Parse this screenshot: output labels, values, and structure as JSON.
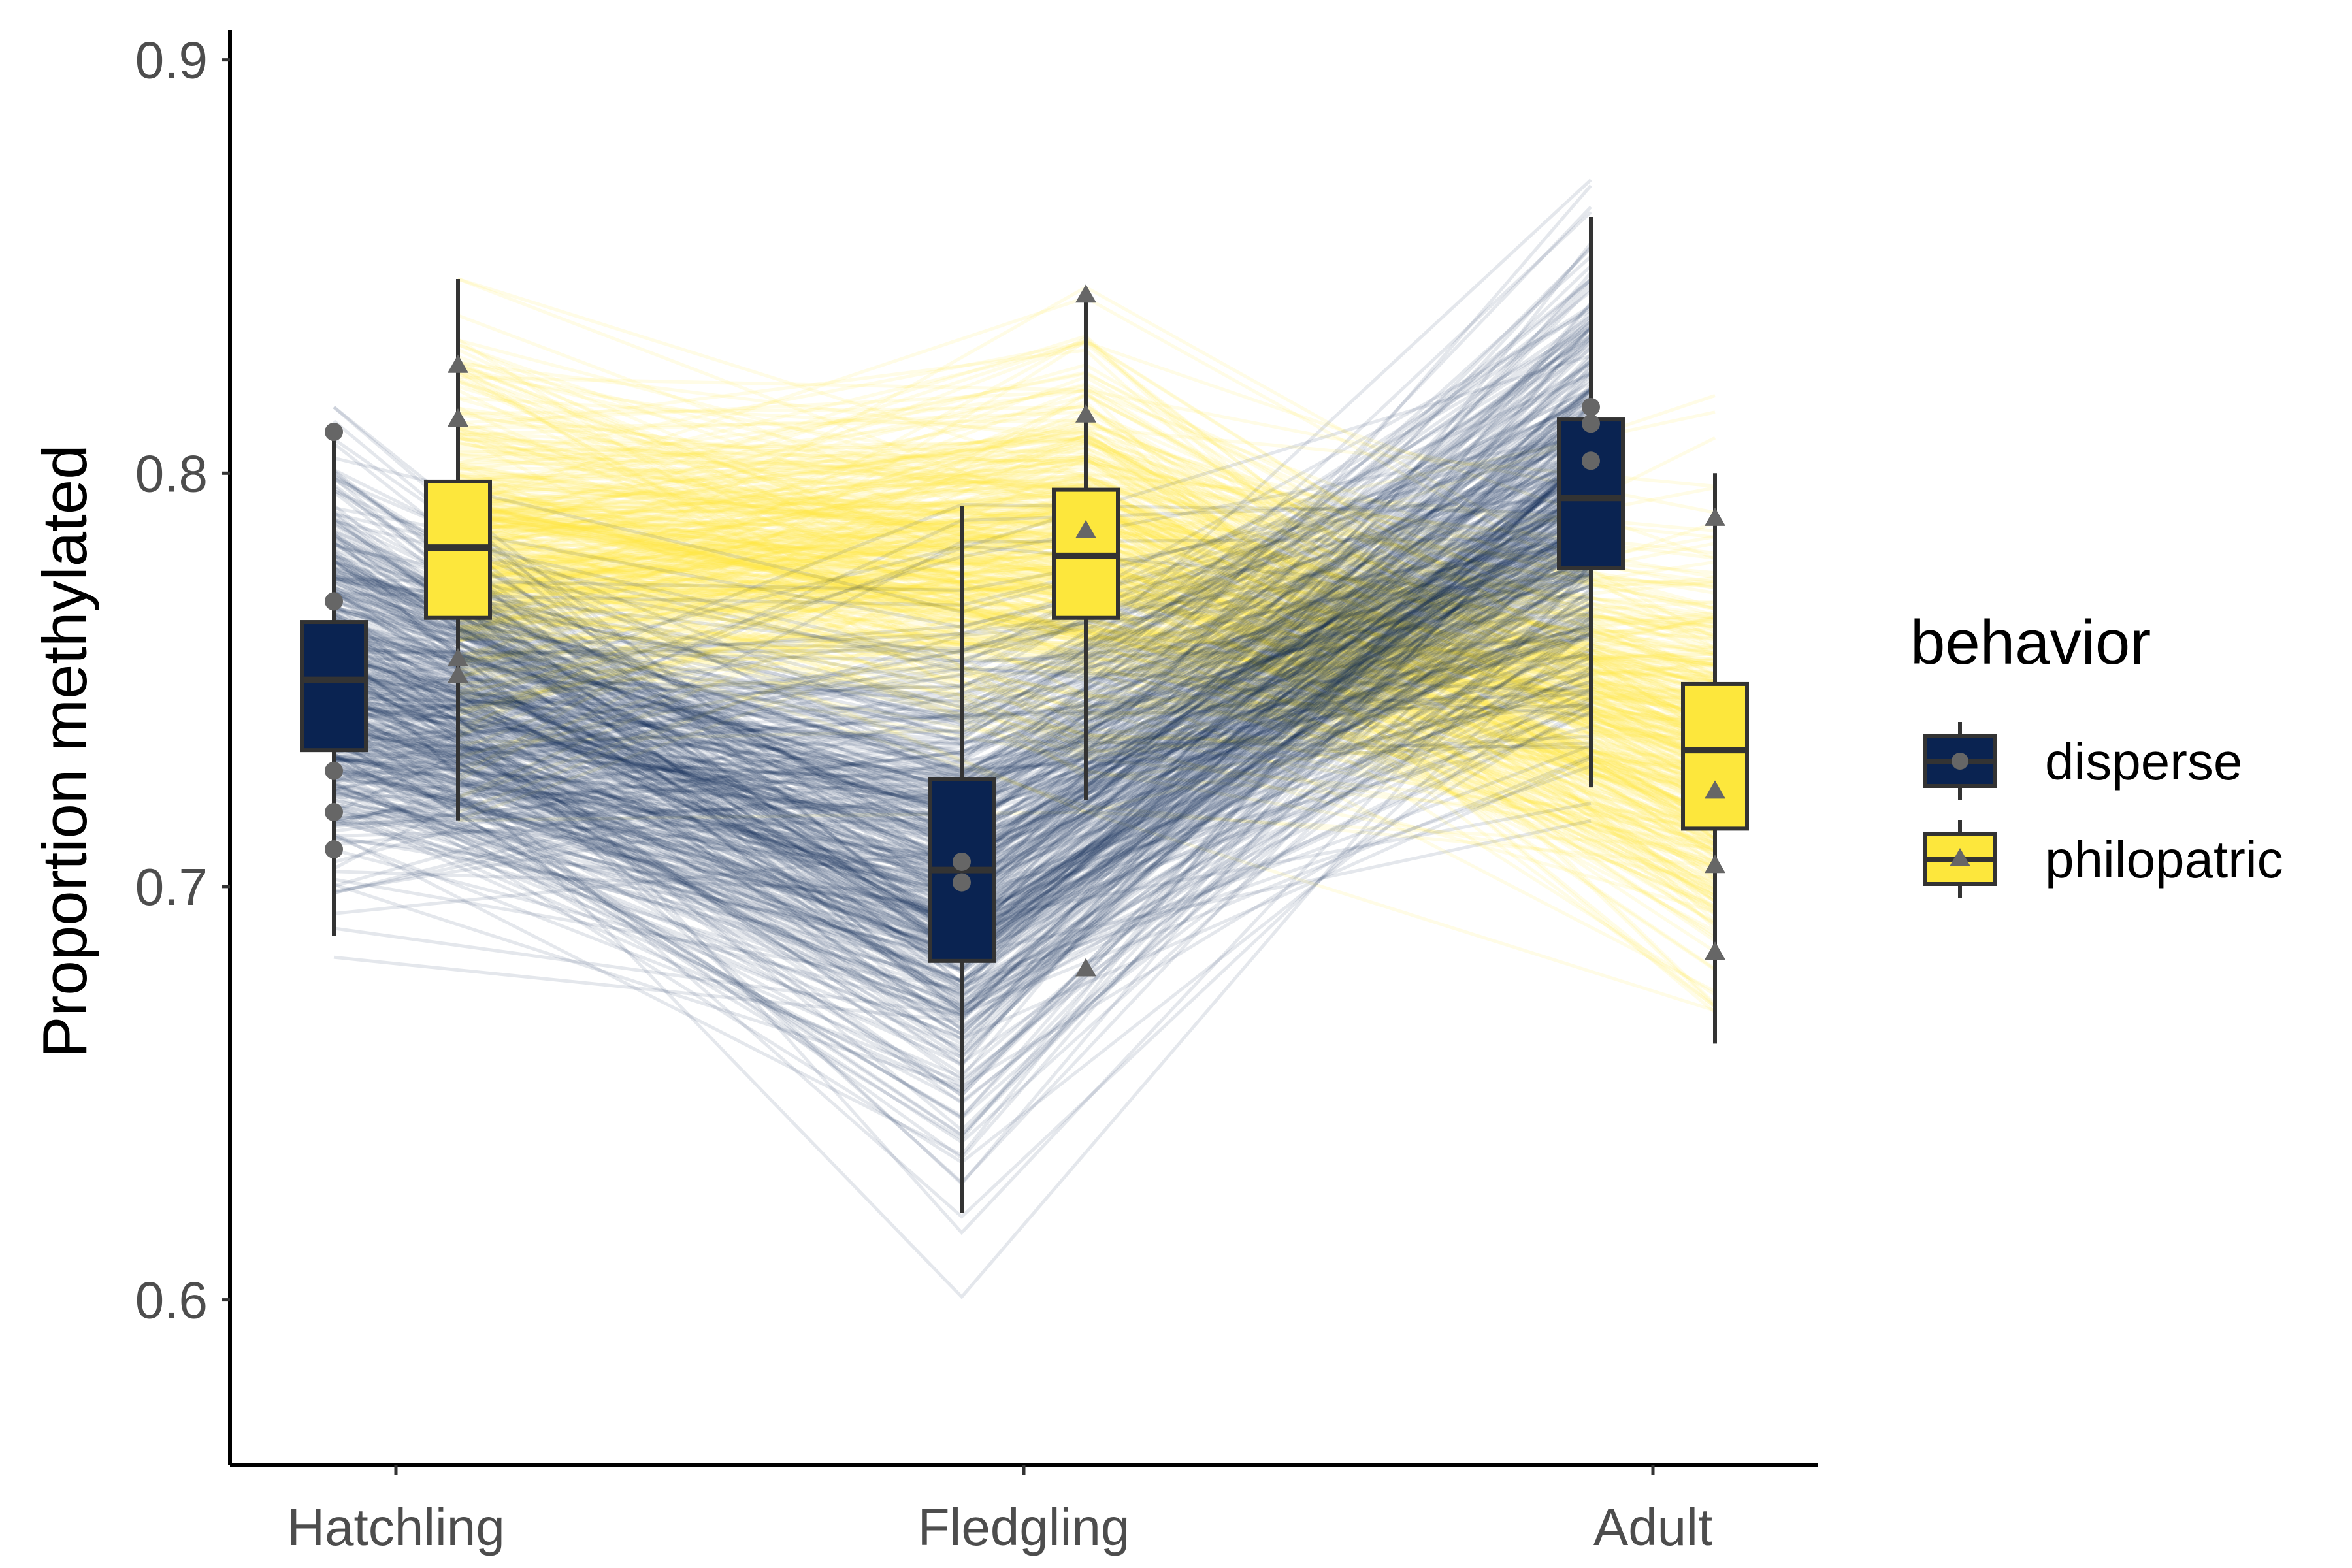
{
  "chart_data": {
    "type": "box",
    "title": "",
    "xlabel": "",
    "ylabel": "Proportion methylated",
    "ylim": [
      0.562,
      0.905
    ],
    "y_ticks": [
      0.6,
      0.7,
      0.8,
      0.9
    ],
    "y_tick_labels": [
      "0.6",
      "0.7",
      "0.8",
      "0.9"
    ],
    "categories": [
      "Hatchling",
      "Fledgling",
      "Adult"
    ],
    "grid": false,
    "legend": {
      "title": "behavior",
      "position": "right",
      "entries": [
        {
          "label": "disperse",
          "color": "#0a2351",
          "shape": "circle"
        },
        {
          "label": "philopatric",
          "color": "#fde73c",
          "shape": "triangle"
        }
      ]
    },
    "series": [
      {
        "name": "disperse",
        "color": "#0a2351",
        "boxes": [
          {
            "category": "Hatchling",
            "whisker_low": 0.688,
            "q1": 0.733,
            "median": 0.75,
            "q3": 0.764,
            "whisker_high": 0.81,
            "points": [
              0.81,
              0.769,
              0.728,
              0.718,
              0.709
            ]
          },
          {
            "category": "Fledgling",
            "whisker_low": 0.621,
            "q1": 0.682,
            "median": 0.704,
            "q3": 0.726,
            "whisker_high": 0.792,
            "points": [
              0.706,
              0.701
            ]
          },
          {
            "category": "Adult",
            "whisker_low": 0.724,
            "q1": 0.777,
            "median": 0.794,
            "q3": 0.813,
            "whisker_high": 0.862,
            "points": [
              0.816,
              0.812,
              0.803
            ]
          }
        ],
        "trajectory_band": {
          "Hatchling": [
            0.662,
            0.816
          ],
          "Fledgling": [
            0.578,
            0.82
          ],
          "Adult": [
            0.705,
            0.887
          ]
        }
      },
      {
        "name": "philopatric",
        "color": "#fde73c",
        "boxes": [
          {
            "category": "Hatchling",
            "whisker_low": 0.716,
            "q1": 0.765,
            "median": 0.782,
            "q3": 0.798,
            "whisker_high": 0.847,
            "points": [
              0.826,
              0.813,
              0.755,
              0.751
            ]
          },
          {
            "category": "Fledgling",
            "whisker_low": 0.721,
            "q1": 0.765,
            "median": 0.78,
            "q3": 0.796,
            "whisker_high": 0.843,
            "points": [
              0.843,
              0.814,
              0.786,
              0.68
            ]
          },
          {
            "category": "Adult",
            "whisker_low": 0.662,
            "q1": 0.714,
            "median": 0.733,
            "q3": 0.749,
            "whisker_high": 0.8,
            "points": [
              0.789,
              0.723,
              0.705,
              0.684
            ]
          }
        ],
        "trajectory_band": {
          "Hatchling": [
            0.716,
            0.847
          ],
          "Fledgling": [
            0.718,
            0.845
          ],
          "Adult": [
            0.636,
            0.832
          ]
        }
      }
    ]
  }
}
